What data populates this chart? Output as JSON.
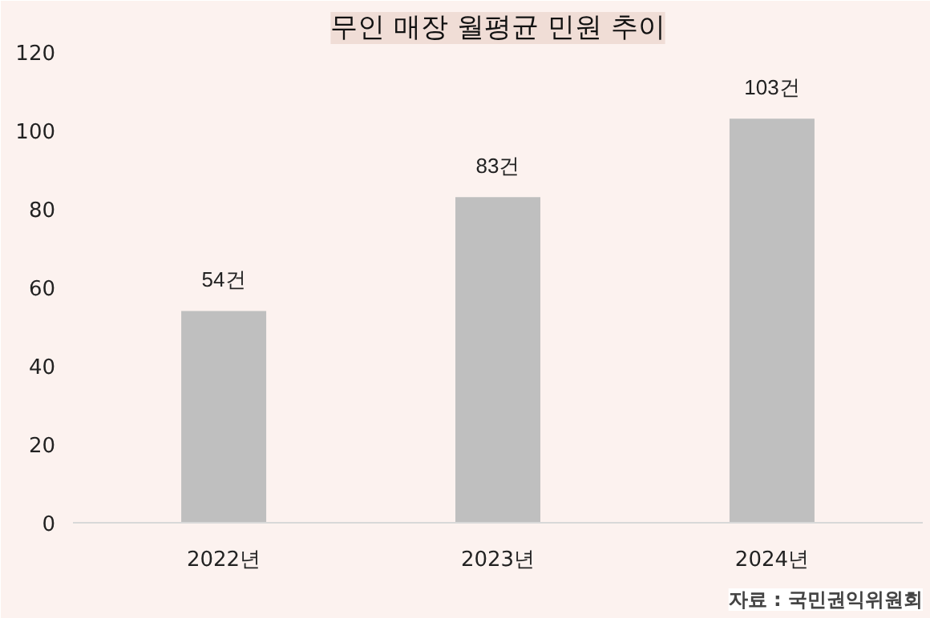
{
  "chart_data": {
    "type": "bar",
    "title": "무인 매장 월평균 민원 추이",
    "categories": [
      "2022년",
      "2023년",
      "2024년"
    ],
    "values": [
      54,
      83,
      103
    ],
    "value_labels": [
      "54건",
      "83건",
      "103건"
    ],
    "color": "#bfbfbf",
    "ylim": [
      0,
      120
    ],
    "yticks": [
      0,
      20,
      40,
      60,
      80,
      100,
      120
    ],
    "grid": false,
    "annotations": [
      "자료 : 국민권익위원회"
    ]
  }
}
